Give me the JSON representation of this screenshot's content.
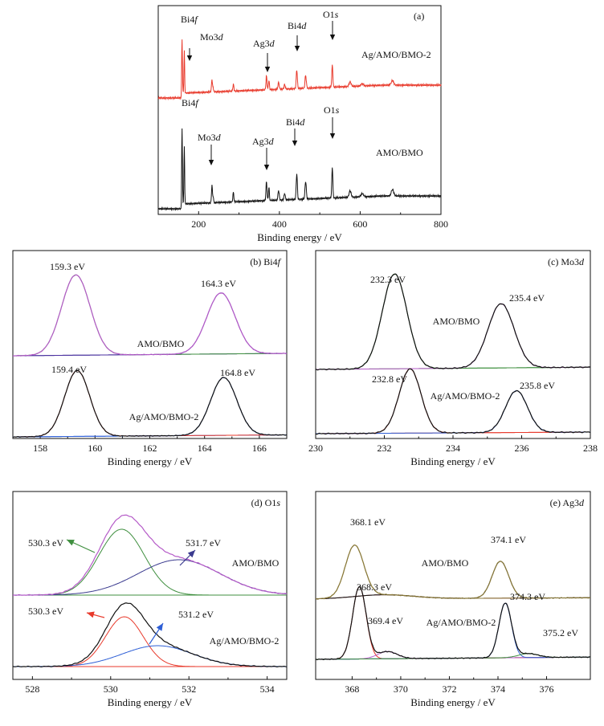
{
  "chart_data": [
    {
      "panel": "a",
      "type": "line",
      "label": "(a)",
      "xlabel": "Binding energy / eV",
      "xlim": [
        100,
        800
      ],
      "xticks": [
        200,
        400,
        600,
        800
      ],
      "peak_positions": [
        160,
        233,
        368,
        445,
        531,
        575,
        680
      ],
      "series": [
        {
          "name": "Ag/AMO/BMO-2",
          "color": "#e8392b"
        },
        {
          "name": "AMO/BMO",
          "color": "#111111"
        }
      ],
      "peak_labels": [
        {
          "text": "Bi4f",
          "x": 160
        },
        {
          "text": "Mo3d",
          "x": 233
        },
        {
          "text": "Ag3d",
          "x": 368
        },
        {
          "text": "Bi4d",
          "x": 443
        },
        {
          "text": "O1s",
          "x": 531
        }
      ]
    },
    {
      "panel": "b",
      "type": "line",
      "label": "(b) Bi4f",
      "xlabel": "Binding energy / eV",
      "xlim": [
        157,
        167
      ],
      "xticks": [
        158,
        160,
        162,
        164,
        166
      ],
      "traces": [
        {
          "name": "AMO/BMO",
          "peaks": [
            159.3,
            164.3
          ],
          "annotations": [
            "159.3 eV",
            "164.3 eV"
          ]
        },
        {
          "name": "Ag/AMO/BMO-2",
          "peaks": [
            159.4,
            164.8
          ],
          "annotations": [
            "159.4 eV",
            "164.8 eV"
          ]
        }
      ]
    },
    {
      "panel": "c",
      "type": "line",
      "label": "(c) Mo3d",
      "xlabel": "Binding energy / eV",
      "xlim": [
        230,
        238
      ],
      "xticks": [
        230,
        232,
        234,
        236,
        238
      ],
      "traces": [
        {
          "name": "AMO/BMO",
          "peaks": [
            232.3,
            235.4
          ],
          "annotations": [
            "232.3 eV",
            "235.4 eV"
          ]
        },
        {
          "name": "Ag/AMO/BMO-2",
          "peaks": [
            232.8,
            235.8
          ],
          "annotations": [
            "232.8 eV",
            "235.8 eV"
          ]
        }
      ]
    },
    {
      "panel": "d",
      "type": "line",
      "label": "(d) O1s",
      "xlabel": "Binding energy / eV",
      "xlim": [
        527.5,
        534.5
      ],
      "xticks": [
        528,
        530,
        532,
        534
      ],
      "traces": [
        {
          "name": "AMO/BMO",
          "peaks": [
            530.3,
            531.7
          ],
          "annotations": [
            "530.3 eV",
            "531.7 eV"
          ]
        },
        {
          "name": "Ag/AMO/BMO-2",
          "peaks": [
            530.3,
            531.2
          ],
          "annotations": [
            "530.3 eV",
            "531.2 eV"
          ]
        }
      ]
    },
    {
      "panel": "e",
      "type": "line",
      "label": "(e) Ag3d",
      "xlabel": "Binding energy / eV",
      "xlim": [
        366.5,
        377.8
      ],
      "xticks": [
        368,
        370,
        372,
        374,
        376
      ],
      "traces": [
        {
          "name": "AMO/BMO",
          "peaks": [
            368.1,
            374.1
          ],
          "annotations": [
            "368.1 eV",
            "374.1 eV"
          ]
        },
        {
          "name": "Ag/AMO/BMO-2",
          "peaks": [
            368.3,
            369.4,
            374.3,
            375.2
          ],
          "annotations": [
            "368.3 eV",
            "369.4 eV",
            "374.3 eV",
            "375.2 eV"
          ]
        }
      ]
    }
  ]
}
